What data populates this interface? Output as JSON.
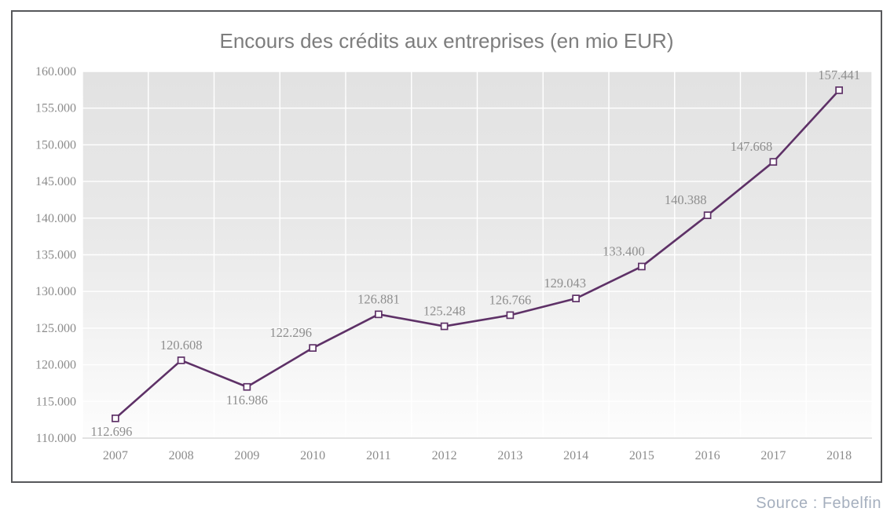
{
  "page": {
    "source_note": "Source : Febelfin"
  },
  "colors": {
    "line": "#5e3167",
    "marker_fill": "#ffffff",
    "data_label_text": "#8e8e8e",
    "axis_text": "#8c8c8c",
    "title_text": "#7d7d7d",
    "source_text": "#a5afbe",
    "frame_border": "#57585b",
    "grid": "#ffffff",
    "axis_line": "#d8d8d8",
    "plot_bg_top": "#e2e2e2",
    "plot_bg_mid": "#e9e9e9",
    "plot_bg_low": "#f6f6f6",
    "plot_bg_bottom": "#fdfdfd"
  },
  "chart_data": {
    "type": "line",
    "title": "Encours des crédits aux entreprises (en mio EUR)",
    "categories": [
      "2007",
      "2008",
      "2009",
      "2010",
      "2011",
      "2012",
      "2013",
      "2014",
      "2015",
      "2016",
      "2017",
      "2018"
    ],
    "values": [
      112696,
      120608,
      116986,
      122296,
      126881,
      125248,
      126766,
      129043,
      133400,
      140388,
      147668,
      157441
    ],
    "value_labels": [
      "112.696",
      "120.608",
      "116.986",
      "122.296",
      "126.881",
      "125.248",
      "126.766",
      "129.043",
      "133.400",
      "140.388",
      "147.668",
      "157.441"
    ],
    "label_positions": [
      "below",
      "above",
      "below",
      "above",
      "above",
      "above",
      "above",
      "above",
      "above",
      "above",
      "above",
      "above"
    ],
    "label_dx": [
      -5,
      0,
      0,
      -28,
      0,
      0,
      0,
      -14,
      -23,
      -28,
      -28,
      0
    ],
    "ylim": [
      110000,
      160000
    ],
    "ytick_step": 5000,
    "ytick_labels": [
      "110.000",
      "115.000",
      "120.000",
      "125.000",
      "130.000",
      "135.000",
      "140.000",
      "145.000",
      "150.000",
      "155.000",
      "160.000"
    ],
    "xlabel": "",
    "ylabel": "",
    "grid": "on",
    "legend": "none",
    "marker": "open-square",
    "source": "Source : Febelfin"
  }
}
